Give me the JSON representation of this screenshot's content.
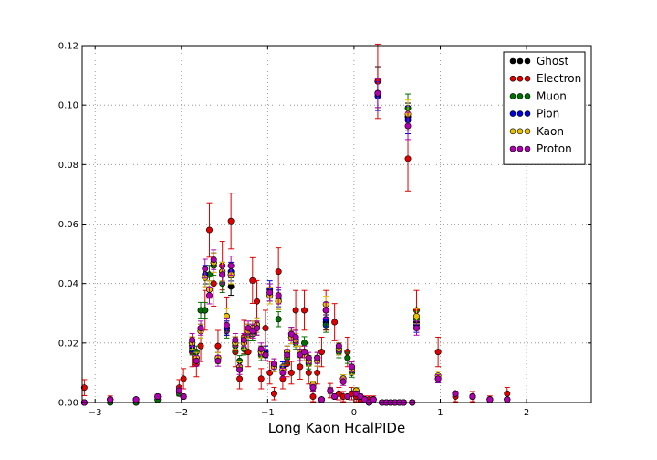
{
  "chart_data": {
    "type": "scatter",
    "title": "",
    "xlabel": "Long Kaon HcalPIDe",
    "ylabel": "",
    "xlim": [
      -3.15,
      2.75
    ],
    "ylim": [
      0,
      0.12
    ],
    "xticks": [
      -3,
      -2,
      -1,
      0,
      1,
      2
    ],
    "xtick_labels": [
      "−3",
      "−2",
      "−1",
      "0",
      "1",
      "2"
    ],
    "yticks": [
      0,
      0.02,
      0.04,
      0.06,
      0.08,
      0.1,
      0.12
    ],
    "ytick_labels": [
      "0.00",
      "0.02",
      "0.04",
      "0.06",
      "0.08",
      "0.10",
      "0.12"
    ],
    "grid": true,
    "legend_position": "top-right",
    "error_bars": true,
    "x": [
      -3.125,
      -2.825,
      -2.525,
      -2.275,
      -2.025,
      -1.975,
      -1.875,
      -1.825,
      -1.775,
      -1.725,
      -1.675,
      -1.625,
      -1.575,
      -1.525,
      -1.475,
      -1.425,
      -1.375,
      -1.325,
      -1.275,
      -1.225,
      -1.175,
      -1.125,
      -1.075,
      -1.025,
      -0.975,
      -0.925,
      -0.875,
      -0.825,
      -0.775,
      -0.725,
      -0.675,
      -0.625,
      -0.575,
      -0.525,
      -0.475,
      -0.425,
      -0.375,
      -0.325,
      -0.275,
      -0.225,
      -0.175,
      -0.125,
      -0.075,
      -0.025,
      0.025,
      0.075,
      0.125,
      0.175,
      0.225,
      0.275,
      0.325,
      0.375,
      0.425,
      0.475,
      0.525,
      0.575,
      0.625,
      0.675,
      0.725,
      0.975,
      1.175,
      1.375,
      1.575,
      1.775
    ],
    "series": [
      {
        "name": "Ghost",
        "color": "#000000",
        "values": [
          0.0,
          0.001,
          0.001,
          0.002,
          0.004,
          0.002,
          0.02,
          0.015,
          0.024,
          0.042,
          0.038,
          0.047,
          0.015,
          0.044,
          0.025,
          0.039,
          0.02,
          0.012,
          0.02,
          0.024,
          0.025,
          0.026,
          0.017,
          0.016,
          0.036,
          0.012,
          0.034,
          0.011,
          0.017,
          0.022,
          0.021,
          0.017,
          0.016,
          0.014,
          0.006,
          0.014,
          0.001,
          0.027,
          0.004,
          0.002,
          0.018,
          0.008,
          0.002,
          0.011,
          0.004,
          0.002,
          0.001,
          0.0,
          0.001,
          0.108,
          0.0,
          0.0,
          0.0,
          0.0,
          0.0,
          0.0,
          0.096,
          0.0,
          0.027,
          0.008,
          0.003,
          0.002,
          0.001,
          0.001
        ]
      },
      {
        "name": "Electron",
        "color": "#e00000",
        "values": [
          0.005,
          0.001,
          0.0,
          0.001,
          0.005,
          0.008,
          0.017,
          0.013,
          0.019,
          0.031,
          0.058,
          0.04,
          0.019,
          0.046,
          0.029,
          0.061,
          0.017,
          0.008,
          0.022,
          0.017,
          0.041,
          0.034,
          0.008,
          0.025,
          0.01,
          0.003,
          0.044,
          0.008,
          0.013,
          0.01,
          0.031,
          0.012,
          0.031,
          0.01,
          0.002,
          0.01,
          0.017,
          0.031,
          0.004,
          0.027,
          0.003,
          0.002,
          0.017,
          0.003,
          0.002,
          0.001,
          0.001,
          0.001,
          0.001,
          0.108,
          0.0,
          0.0,
          0.0,
          0.0,
          0.0,
          0.0,
          0.082,
          0.0,
          0.031,
          0.017,
          0.002,
          0.002,
          0.001,
          0.003
        ]
      },
      {
        "name": "Muon",
        "color": "#007000",
        "values": [
          0.0,
          0.0,
          0.0,
          0.001,
          0.003,
          0.002,
          0.018,
          0.017,
          0.031,
          0.031,
          0.043,
          0.046,
          0.015,
          0.04,
          0.024,
          0.043,
          0.019,
          0.014,
          0.018,
          0.023,
          0.023,
          0.025,
          0.016,
          0.016,
          0.037,
          0.013,
          0.028,
          0.011,
          0.015,
          0.023,
          0.02,
          0.016,
          0.02,
          0.013,
          0.005,
          0.015,
          0.001,
          0.026,
          0.004,
          0.002,
          0.017,
          0.008,
          0.015,
          0.01,
          0.004,
          0.002,
          0.001,
          0.0,
          0.001,
          0.104,
          0.0,
          0.0,
          0.0,
          0.0,
          0.0,
          0.0,
          0.099,
          0.0,
          0.028,
          0.008,
          0.003,
          0.002,
          0.001,
          0.001
        ]
      },
      {
        "name": "Pion",
        "color": "#0000dd",
        "values": [
          0.0,
          0.001,
          0.001,
          0.002,
          0.004,
          0.002,
          0.019,
          0.015,
          0.024,
          0.043,
          0.038,
          0.047,
          0.015,
          0.043,
          0.025,
          0.044,
          0.02,
          0.012,
          0.02,
          0.024,
          0.025,
          0.026,
          0.017,
          0.017,
          0.038,
          0.012,
          0.035,
          0.012,
          0.017,
          0.022,
          0.021,
          0.017,
          0.016,
          0.014,
          0.006,
          0.014,
          0.001,
          0.028,
          0.004,
          0.002,
          0.018,
          0.008,
          0.002,
          0.011,
          0.004,
          0.002,
          0.001,
          0.0,
          0.001,
          0.103,
          0.0,
          0.0,
          0.0,
          0.0,
          0.0,
          0.0,
          0.095,
          0.0,
          0.026,
          0.008,
          0.003,
          0.002,
          0.001,
          0.001
        ]
      },
      {
        "name": "Kaon",
        "color": "#e8c000",
        "values": [
          0.0,
          0.001,
          0.001,
          0.002,
          0.004,
          0.002,
          0.02,
          0.015,
          0.024,
          0.042,
          0.038,
          0.047,
          0.015,
          0.044,
          0.029,
          0.043,
          0.02,
          0.012,
          0.02,
          0.024,
          0.025,
          0.026,
          0.017,
          0.016,
          0.036,
          0.012,
          0.034,
          0.011,
          0.017,
          0.022,
          0.021,
          0.017,
          0.016,
          0.014,
          0.006,
          0.014,
          0.001,
          0.033,
          0.004,
          0.002,
          0.018,
          0.008,
          0.002,
          0.011,
          0.004,
          0.002,
          0.001,
          0.0,
          0.001,
          0.104,
          0.0,
          0.0,
          0.0,
          0.0,
          0.0,
          0.0,
          0.097,
          0.0,
          0.029,
          0.009,
          0.003,
          0.002,
          0.001,
          0.001
        ]
      },
      {
        "name": "Proton",
        "color": "#b000b0",
        "values": [
          0.0,
          0.001,
          0.001,
          0.002,
          0.004,
          0.002,
          0.021,
          0.014,
          0.025,
          0.045,
          0.036,
          0.048,
          0.014,
          0.043,
          0.026,
          0.046,
          0.021,
          0.011,
          0.021,
          0.025,
          0.024,
          0.025,
          0.018,
          0.016,
          0.037,
          0.013,
          0.036,
          0.01,
          0.016,
          0.023,
          0.022,
          0.016,
          0.017,
          0.015,
          0.005,
          0.015,
          0.001,
          0.031,
          0.004,
          0.002,
          0.019,
          0.007,
          0.002,
          0.012,
          0.003,
          0.002,
          0.001,
          0.0,
          0.001,
          0.104,
          0.0,
          0.0,
          0.0,
          0.0,
          0.0,
          0.0,
          0.093,
          0.0,
          0.025,
          0.008,
          0.003,
          0.002,
          0.001,
          0.001
        ]
      }
    ]
  }
}
